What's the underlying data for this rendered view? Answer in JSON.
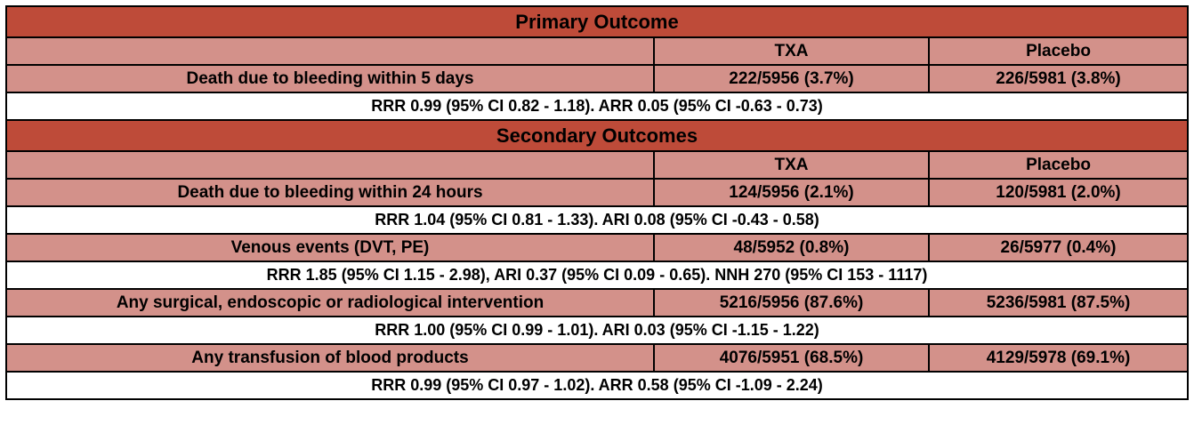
{
  "primary": {
    "title": "Primary Outcome",
    "col_txa": "TXA",
    "col_placebo": "Placebo",
    "rows": [
      {
        "label": "Death due to bleeding within  5 days",
        "txa": "222/5956 (3.7%)",
        "placebo": "226/5981 (3.8%)",
        "stats": "RRR 0.99 (95% CI 0.82 - 1.18). ARR 0.05 (95% CI -0.63 - 0.73)"
      }
    ]
  },
  "secondary": {
    "title": "Secondary Outcomes",
    "col_txa": "TXA",
    "col_placebo": "Placebo",
    "rows": [
      {
        "label": "Death due to bleeding within 24 hours",
        "txa": "124/5956 (2.1%)",
        "placebo": "120/5981 (2.0%)",
        "stats": "RRR 1.04 (95% CI 0.81 - 1.33). ARI 0.08 (95% CI -0.43 - 0.58)"
      },
      {
        "label": "Venous events (DVT, PE)",
        "txa": "48/5952 (0.8%)",
        "placebo": "26/5977 (0.4%)",
        "stats": "RRR 1.85 (95% CI 1.15 - 2.98), ARI 0.37 (95% CI 0.09 - 0.65). NNH 270 (95% CI 153 - 1117)"
      },
      {
        "label": "Any surgical, endoscopic or radiological intervention",
        "txa": "5216/5956 (87.6%)",
        "placebo": "5236/5981 (87.5%)",
        "stats": "RRR 1.00 (95% CI 0.99 - 1.01). ARI 0.03 (95% CI -1.15 - 1.22)"
      },
      {
        "label": "Any transfusion of blood products",
        "txa": "4076/5951 (68.5%)",
        "placebo": "4129/5978 (69.1%)",
        "stats": "RRR 0.99 (95% CI 0.97 - 1.02). ARR 0.58 (95% CI -1.09 - 2.24)"
      }
    ]
  }
}
